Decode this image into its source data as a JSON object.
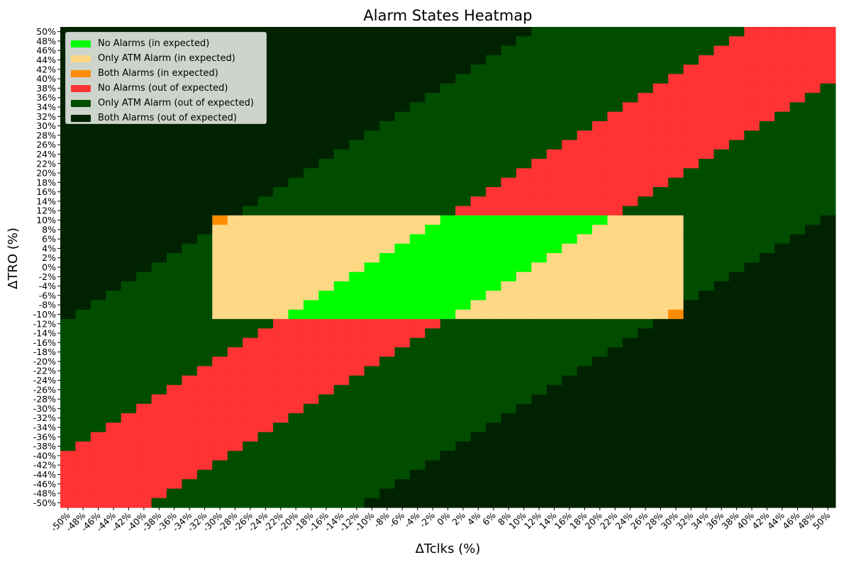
{
  "chart_data": {
    "type": "heatmap",
    "title": "Alarm States Heatmap",
    "xlabel": "ΔTclks (%)",
    "ylabel": "ΔTRO (%)",
    "x_range": [
      -50,
      50
    ],
    "y_range": [
      -50,
      50
    ],
    "step": 2,
    "expected_region": {
      "x": [
        -30,
        30
      ],
      "y": [
        -10,
        10
      ]
    },
    "categories": [
      {
        "name": "No Alarms (in expected)",
        "color": "#00ff00"
      },
      {
        "name": "Only ATM Alarm (in expected)",
        "color": "#ffd885"
      },
      {
        "name": "Both Alarms (in expected)",
        "color": "#ff8c00"
      },
      {
        "name": "No Alarms (out of expected)",
        "color": "#ff3333"
      },
      {
        "name": "Only ATM Alarm (out of expected)",
        "color": "#004d00"
      },
      {
        "name": "Both Alarms (out of expected)",
        "color": "#002200"
      }
    ],
    "state_rule": "d = ΔTRO - ΔTclks; no alarms if |d| <= 10; only ATM alarm if d < -10 or 10 < d <= 38; both alarms if d > 38 or d < -38 (approx.)",
    "x_ticks": [
      "-50%",
      "-48%",
      "-46%",
      "-44%",
      "-42%",
      "-40%",
      "-38%",
      "-36%",
      "-34%",
      "-32%",
      "-30%",
      "-28%",
      "-26%",
      "-24%",
      "-22%",
      "-20%",
      "-18%",
      "-16%",
      "-14%",
      "-12%",
      "-10%",
      "-8%",
      "-6%",
      "-4%",
      "-2%",
      "0%",
      "2%",
      "4%",
      "6%",
      "8%",
      "10%",
      "12%",
      "14%",
      "16%",
      "18%",
      "20%",
      "22%",
      "24%",
      "26%",
      "28%",
      "30%",
      "32%",
      "34%",
      "36%",
      "38%",
      "40%",
      "42%",
      "44%",
      "46%",
      "48%",
      "50%"
    ],
    "y_ticks": [
      "50%",
      "48%",
      "46%",
      "44%",
      "42%",
      "40%",
      "38%",
      "36%",
      "34%",
      "32%",
      "30%",
      "28%",
      "26%",
      "24%",
      "22%",
      "20%",
      "18%",
      "16%",
      "14%",
      "12%",
      "10%",
      "8%",
      "6%",
      "4%",
      "2%",
      "0%",
      "-2%",
      "-4%",
      "-6%",
      "-8%",
      "-10%",
      "-12%",
      "-14%",
      "-16%",
      "-18%",
      "-20%",
      "-22%",
      "-24%",
      "-26%",
      "-28%",
      "-30%",
      "-32%",
      "-34%",
      "-36%",
      "-38%",
      "-40%",
      "-42%",
      "-44%",
      "-46%",
      "-48%",
      "-50%"
    ]
  }
}
